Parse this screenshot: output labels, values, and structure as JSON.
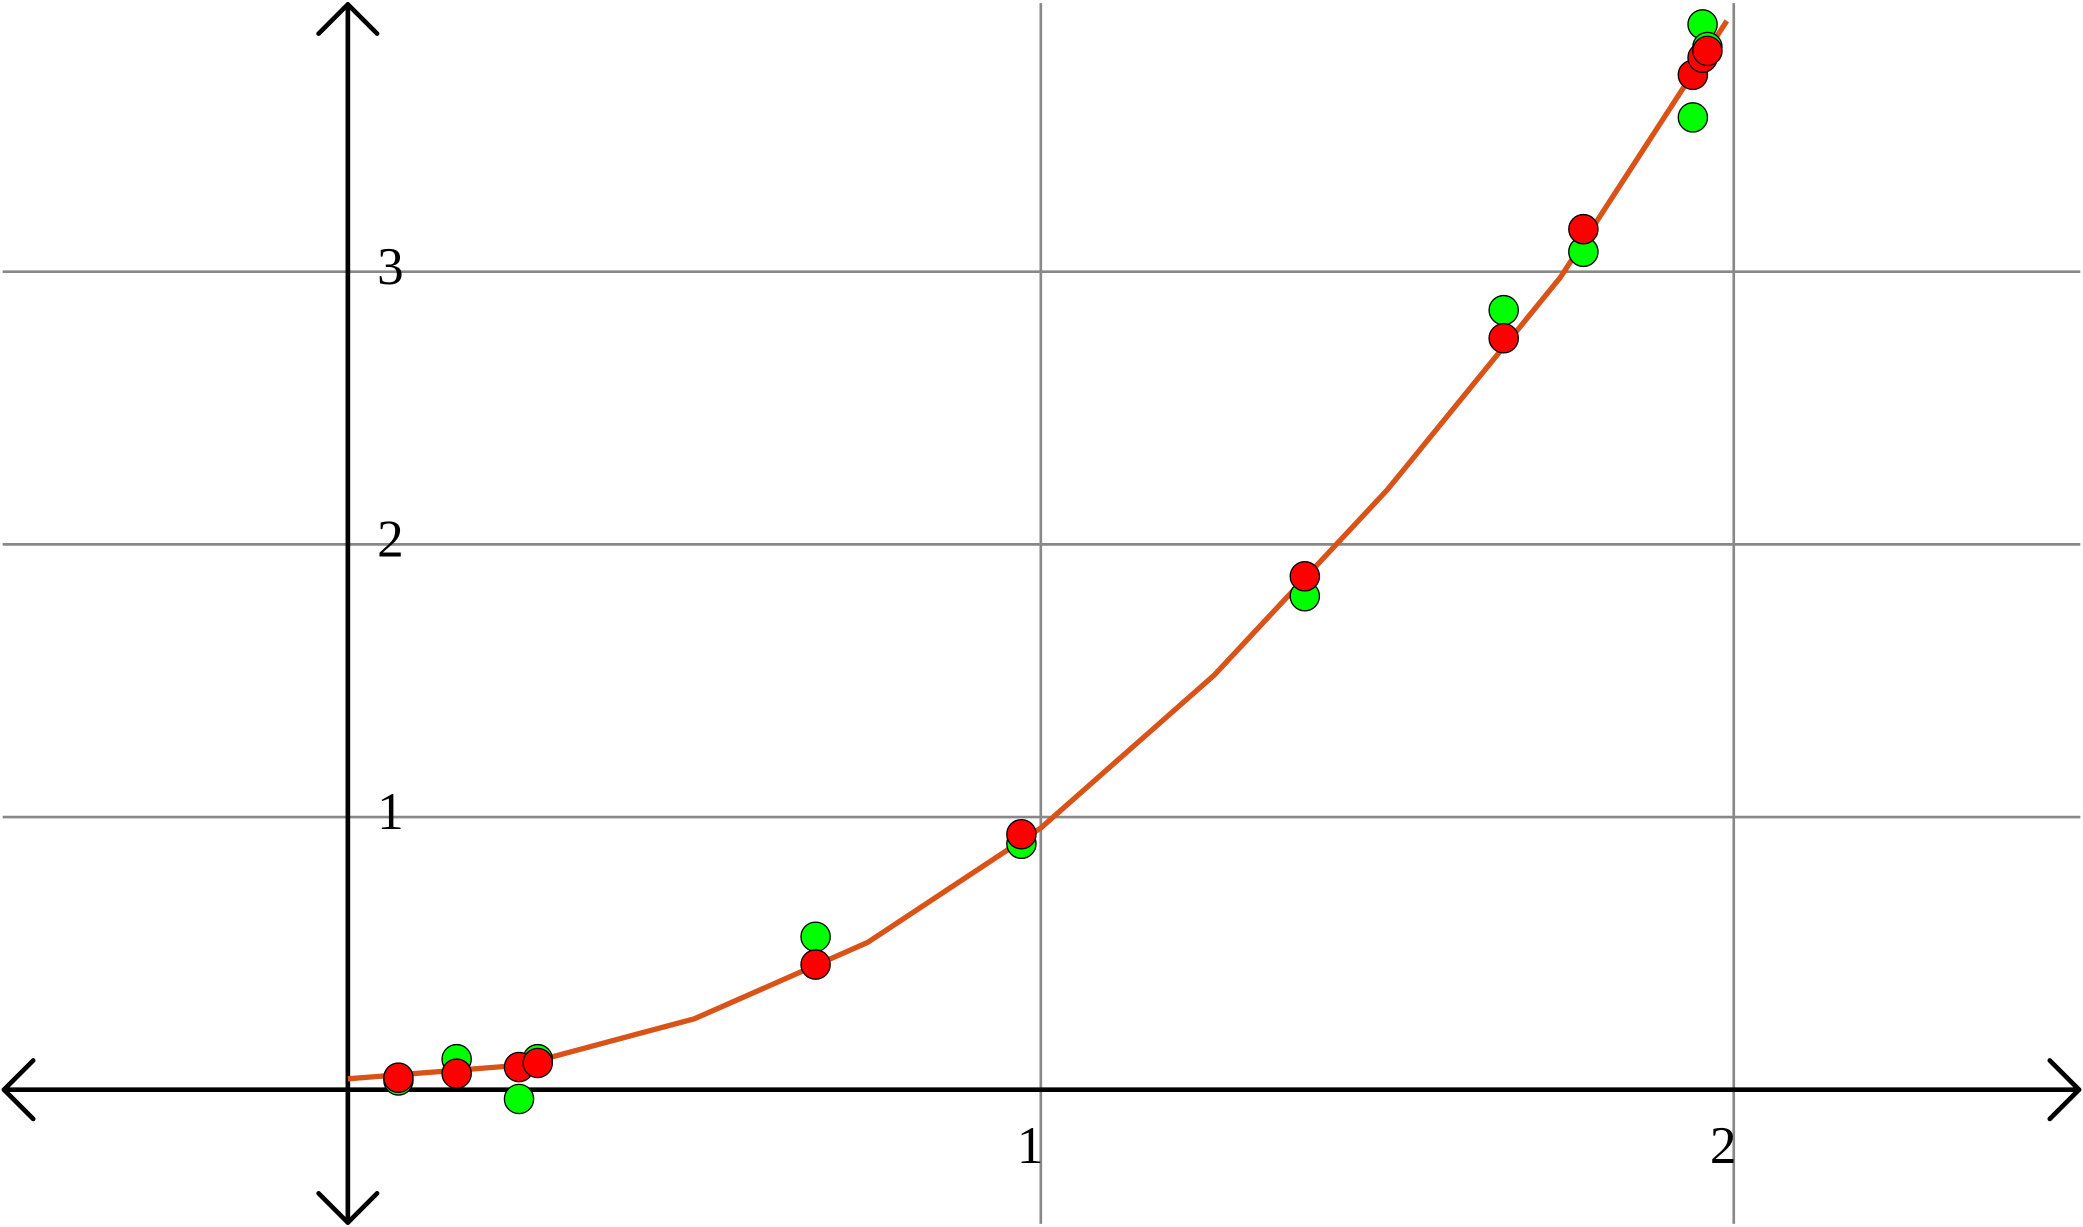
{
  "chart_data": {
    "type": "scatter",
    "xlim": [
      -0.502,
      2.504
    ],
    "ylim": [
      -0.502,
      3.995
    ],
    "xticks": [
      1,
      2
    ],
    "yticks": [
      1,
      2,
      3
    ],
    "grid": true,
    "series": [
      {
        "type": "line",
        "color": "#d95319",
        "x": [
          0,
          0.25,
          0.5,
          0.75,
          1,
          1.25,
          1.5,
          1.75,
          1.99
        ],
        "values": [
          0.04,
          0.09,
          0.26,
          0.54,
          0.96,
          1.52,
          2.2,
          2.98,
          3.92
        ]
      },
      {
        "type": "scatter",
        "color": "#00ff00",
        "x": [
          0.073,
          0.157,
          0.247,
          0.274,
          0.675,
          0.972,
          1.381,
          1.668,
          1.783,
          1.941,
          1.955,
          1.962
        ],
        "values": [
          0.034,
          0.112,
          -0.034,
          0.112,
          0.561,
          0.902,
          1.81,
          2.859,
          3.073,
          3.566,
          3.907,
          3.824
        ]
      },
      {
        "type": "scatter",
        "color": "#ff0000",
        "x": [
          0.073,
          0.157,
          0.247,
          0.274,
          0.675,
          0.972,
          1.381,
          1.668,
          1.783,
          1.941,
          1.955,
          1.962
        ],
        "values": [
          0.044,
          0.059,
          0.083,
          0.098,
          0.459,
          0.937,
          1.883,
          2.756,
          3.156,
          3.722,
          3.785,
          3.81
        ]
      }
    ]
  }
}
